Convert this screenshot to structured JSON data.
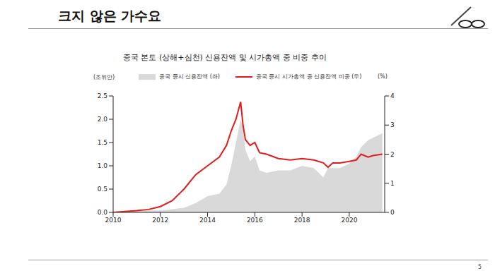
{
  "page": {
    "title": "크지 않은 가수요",
    "number": "5"
  },
  "chart_data": {
    "type": "line",
    "title": "중국 본토 (상해+심천) 신용잔액 및 시가총액 중 비중 추이",
    "y_label": "(조위안)",
    "y2_label": "(%)",
    "x": [
      2010.0,
      2010.5,
      2011.0,
      2011.5,
      2012.0,
      2012.5,
      2013.0,
      2013.5,
      2014.0,
      2014.5,
      2014.8,
      2015.0,
      2015.2,
      2015.4,
      2015.5,
      2015.6,
      2015.8,
      2016.0,
      2016.2,
      2016.5,
      2017.0,
      2017.5,
      2018.0,
      2018.5,
      2018.9,
      2019.1,
      2019.3,
      2019.6,
      2020.0,
      2020.3,
      2020.5,
      2020.8,
      2021.0,
      2021.4
    ],
    "series": [
      {
        "name": "중국 증시 신용잔액 (좌)",
        "type": "area",
        "color": "#d9d9d9",
        "values": [
          0,
          0.01,
          0.03,
          0.04,
          0.04,
          0.07,
          0.1,
          0.2,
          0.35,
          0.4,
          0.6,
          1.0,
          1.5,
          2.0,
          1.8,
          1.35,
          1.1,
          1.2,
          0.9,
          0.85,
          0.9,
          0.9,
          1.0,
          0.95,
          0.75,
          0.95,
          0.95,
          0.95,
          1.05,
          1.2,
          1.4,
          1.55,
          1.6,
          1.7
        ]
      },
      {
        "name": "중국 증시 시가총액 중 신용잔액 비중 (우)",
        "type": "line",
        "color": "#e31b1b",
        "axis": "y2",
        "values": [
          0,
          0.03,
          0.06,
          0.1,
          0.2,
          0.4,
          0.8,
          1.3,
          1.6,
          1.9,
          2.3,
          2.8,
          3.2,
          3.8,
          3.0,
          2.5,
          2.3,
          2.4,
          2.05,
          2.0,
          1.85,
          1.8,
          1.85,
          1.8,
          1.7,
          1.55,
          1.7,
          1.7,
          1.75,
          1.8,
          2.0,
          1.9,
          1.95,
          2.0
        ]
      }
    ],
    "xlim": [
      2010,
      2021.5
    ],
    "xticks": [
      2010,
      2012,
      2014,
      2016,
      2018,
      2020
    ],
    "ylim": [
      0,
      2.5
    ],
    "yticks": [
      {
        "value": 0,
        "label": "0.0"
      },
      0.5,
      {
        "value": 1,
        "label": "1.0"
      },
      1.5,
      {
        "value": 2,
        "label": "2.0"
      },
      2.5
    ],
    "y2lim": [
      0,
      4
    ],
    "y2ticks": [
      0,
      1,
      2,
      3,
      4
    ],
    "grid": false,
    "legend": "top"
  }
}
